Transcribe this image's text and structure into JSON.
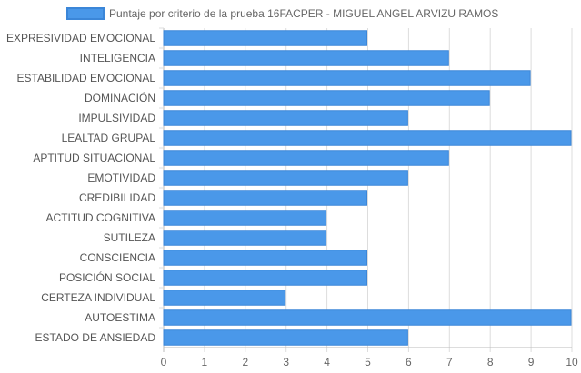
{
  "chart_data": {
    "type": "bar",
    "orientation": "horizontal",
    "legend": {
      "label": "Puntaje por criterio de la prueba 16FACPER - MIGUEL ANGEL ARVIZU RAMOS",
      "placement": "top-center"
    },
    "categories": [
      "EXPRESIVIDAD EMOCIONAL",
      "INTELIGENCIA",
      "ESTABILIDAD EMOCIONAL",
      "DOMINACIÓN",
      "IMPULSIVIDAD",
      "LEALTAD GRUPAL",
      "APTITUD SITUACIONAL",
      "EMOTIVIDAD",
      "CREDIBILIDAD",
      "ACTITUD COGNITIVA",
      "SUTILEZA",
      "CONSCIENCIA",
      "POSICIÓN SOCIAL",
      "CERTEZA INDIVIDUAL",
      "AUTOESTIMA",
      "ESTADO DE ANSIEDAD"
    ],
    "series": [
      {
        "name": "Puntaje por criterio de la prueba 16FACPER - MIGUEL ANGEL ARVIZU RAMOS",
        "values": [
          5,
          7,
          9,
          8,
          6,
          10,
          7,
          6,
          5,
          4,
          4,
          5,
          5,
          3,
          10,
          6
        ]
      }
    ],
    "xlim": [
      0,
      10
    ],
    "x_ticks": [
      "0",
      "1",
      "2",
      "3",
      "4",
      "5",
      "6",
      "7",
      "8",
      "9",
      "10"
    ],
    "grid": true,
    "colors": {
      "bar_fill": "#4a98e9",
      "bar_stroke": "#3b86d8",
      "grid": "#dddddd",
      "axis": "#bbbbbb"
    }
  }
}
